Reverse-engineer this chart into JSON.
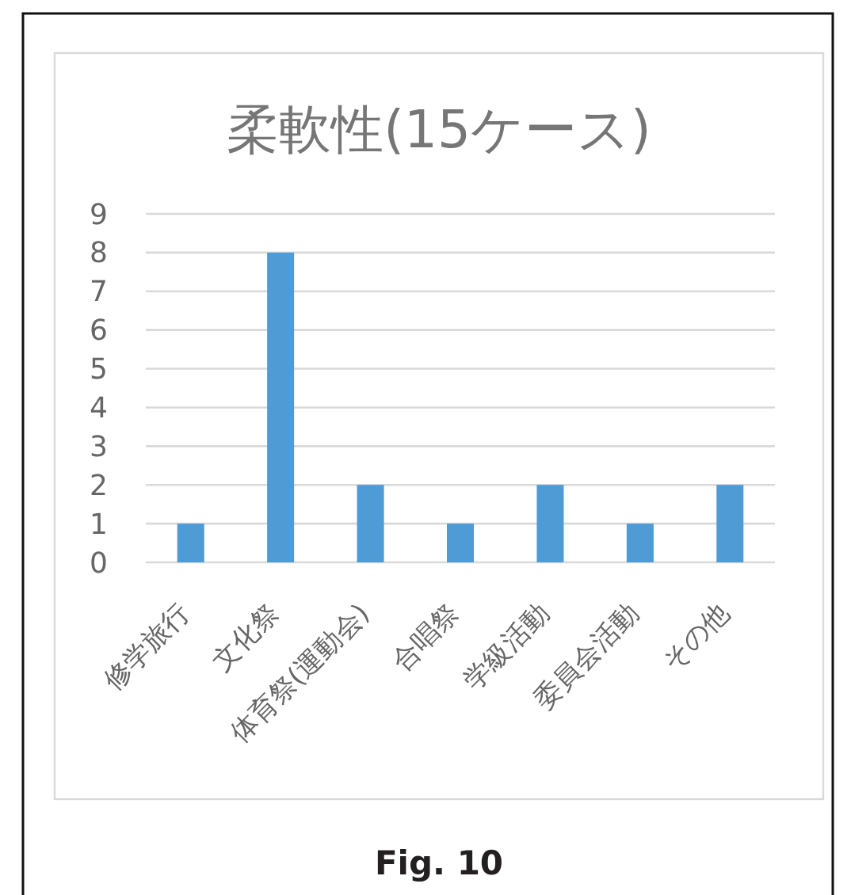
{
  "chart_data": {
    "type": "bar",
    "title": "柔軟性(15ケース)",
    "categories": [
      "修学旅行",
      "文化祭",
      "体育祭(運動会)",
      "合唱祭",
      "学級活動",
      "委員会活動",
      "その他"
    ],
    "values": [
      1,
      8,
      2,
      1,
      2,
      1,
      2
    ],
    "color": "#4e9bd5",
    "ylim": [
      0,
      9
    ],
    "yticks": [
      0,
      1,
      2,
      3,
      4,
      5,
      6,
      7,
      8,
      9
    ],
    "grid": "y",
    "annotations": [
      "Fig. 10"
    ]
  }
}
